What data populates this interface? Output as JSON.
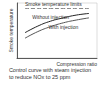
{
  "chart_data": {
    "type": "line",
    "xlabel": "Compression ratio",
    "ylabel": "Smoke temperature",
    "caption": "Control curve with steam injection\nto reduce NOx to 25 ppm",
    "x": [
      1,
      2.6,
      4.2,
      5.8,
      7.4,
      9
    ],
    "xlim": [
      0,
      10
    ],
    "ylim": [
      0,
      10
    ],
    "tick_labels": false,
    "grid": false,
    "series": [
      {
        "name": "Smoke temperature limits",
        "color": "#888888",
        "line_style": "dashed",
        "values": [
          9,
          9,
          9,
          9,
          9,
          9
        ]
      },
      {
        "name": "Without injection",
        "color": "#222222",
        "line_style": "solid",
        "values": [
          4.6,
          5.8,
          6.7,
          7.3,
          7.8,
          8.1
        ]
      },
      {
        "name": "With injection",
        "color": "#555555",
        "line_style": "solid",
        "values": [
          3.6,
          4.8,
          5.7,
          6.4,
          6.9,
          7.3
        ]
      }
    ]
  }
}
